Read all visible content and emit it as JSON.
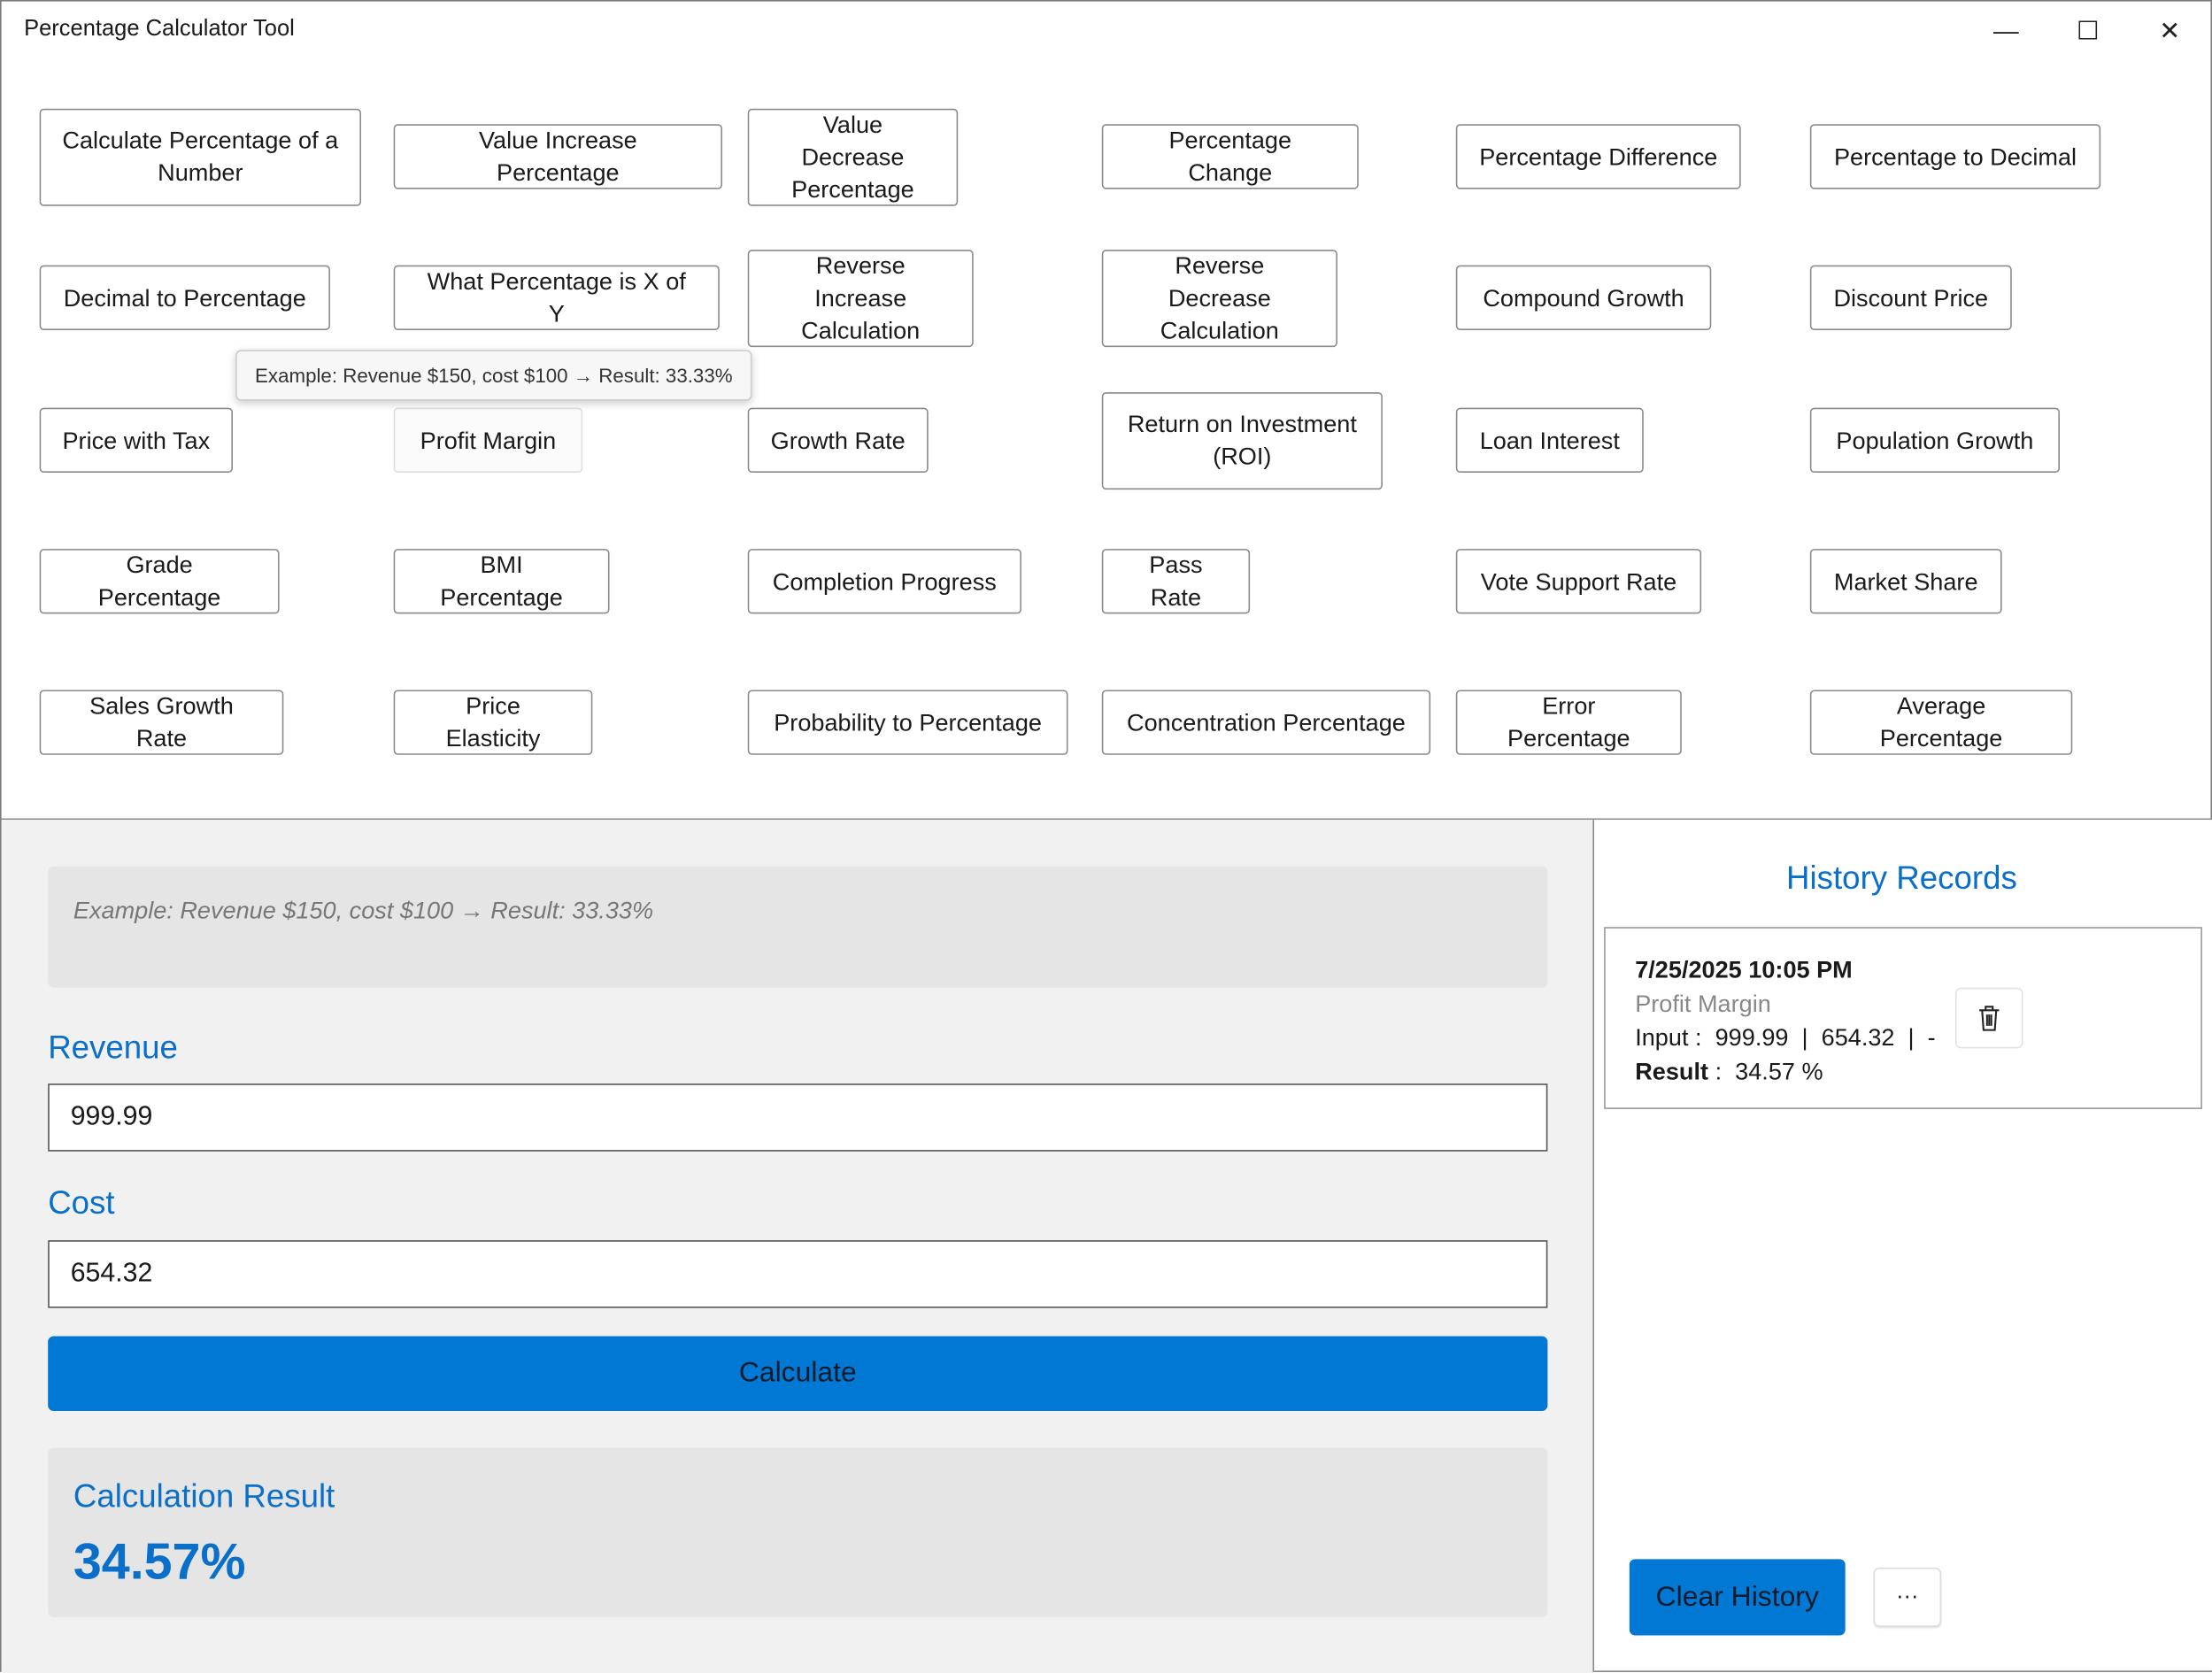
{
  "window": {
    "title": "Percentage Calculator Tool",
    "minimize_icon": "minimize-icon",
    "maximize_icon": "maximize-icon",
    "close_icon": "close-icon"
  },
  "calculators": [
    "Calculate Percentage of a Number",
    "Value Increase Percentage",
    "Value Decrease Percentage",
    "Percentage Change",
    "Percentage Difference",
    "Percentage to Decimal",
    "Decimal to Percentage",
    "What Percentage is X of Y",
    "Reverse Increase Calculation",
    "Reverse Decrease Calculation",
    "Compound Growth",
    "Discount Price",
    "Price with Tax",
    "Profit Margin",
    "Growth Rate",
    "Return on Investment (ROI)",
    "Loan Interest",
    "Population Growth",
    "Grade Percentage",
    "BMI Percentage",
    "Completion Progress",
    "Pass Rate",
    "Vote Support Rate",
    "Market Share",
    "Sales Growth Rate",
    "Price Elasticity",
    "Probability to Percentage",
    "Concentration Percentage",
    "Error Percentage",
    "Average Percentage"
  ],
  "hovered_calculator": "Profit Margin",
  "tooltip": "Example: Revenue $150, cost $100 → Result: 33.33%",
  "form": {
    "hint": "Example: Revenue $150, cost $100 → Result: 33.33%",
    "field1_label": "Revenue",
    "field1_value": "999.99",
    "field2_label": "Cost",
    "field2_value": "654.32",
    "calculate_label": "Calculate",
    "result_title": "Calculation Result",
    "result_value": "34.57%"
  },
  "history": {
    "title": "History Records",
    "records": [
      {
        "timestamp": "7/25/2025 10:05 PM",
        "type": "Profit Margin",
        "input_label": "Input",
        "input_value": "999.99  |  654.32  |  -",
        "result_label": "Result",
        "result_value": "34.57 %"
      }
    ],
    "delete_icon": "trash-icon",
    "clear_label": "Clear History",
    "more_label": "···"
  },
  "colors": {
    "accent": "#0078d4",
    "label": "#0a6fc9"
  }
}
